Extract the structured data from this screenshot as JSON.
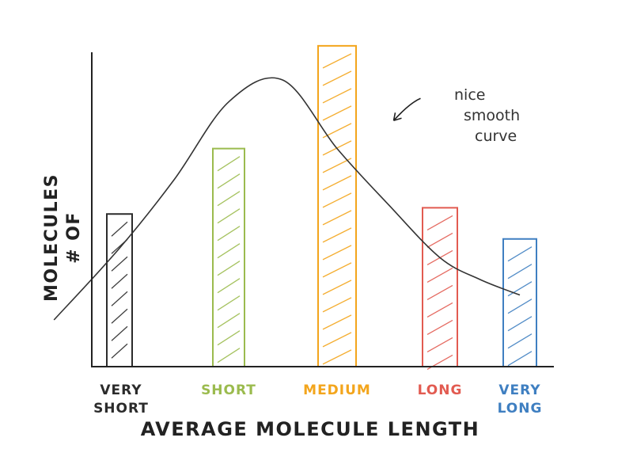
{
  "chart_data": {
    "type": "bar",
    "categories": [
      "VERY SHORT",
      "SHORT",
      "MEDIUM",
      "LONG",
      "VERY LONG"
    ],
    "category_lines": [
      [
        "VERY",
        "SHORT"
      ],
      [
        "SHORT"
      ],
      [
        "MEDIUM"
      ],
      [
        "LONG"
      ],
      [
        "VERY",
        "LONG"
      ]
    ],
    "values": [
      49,
      70,
      103,
      51,
      41
    ],
    "colors": [
      "#2b2b2b",
      "#9bbb4e",
      "#f3a51c",
      "#e25b51",
      "#3f7fc1"
    ],
    "ylim": [
      0,
      105
    ],
    "xlabel": "AVERAGE MOLECULE LENGTH",
    "ylabel_lines": [
      "# OF",
      "MOLECULES"
    ],
    "curve": {
      "x": [
        0.4,
        1.0,
        1.5,
        2.0,
        2.5,
        3.0,
        3.5,
        4.0,
        4.5,
        5.0
      ],
      "y": [
        15,
        38,
        60,
        85,
        92,
        70,
        52,
        35,
        28,
        23
      ]
    },
    "annotation": {
      "lines": [
        "nice",
        "smooth",
        "curve"
      ],
      "target_x": 3.55,
      "target_y": 79
    }
  }
}
